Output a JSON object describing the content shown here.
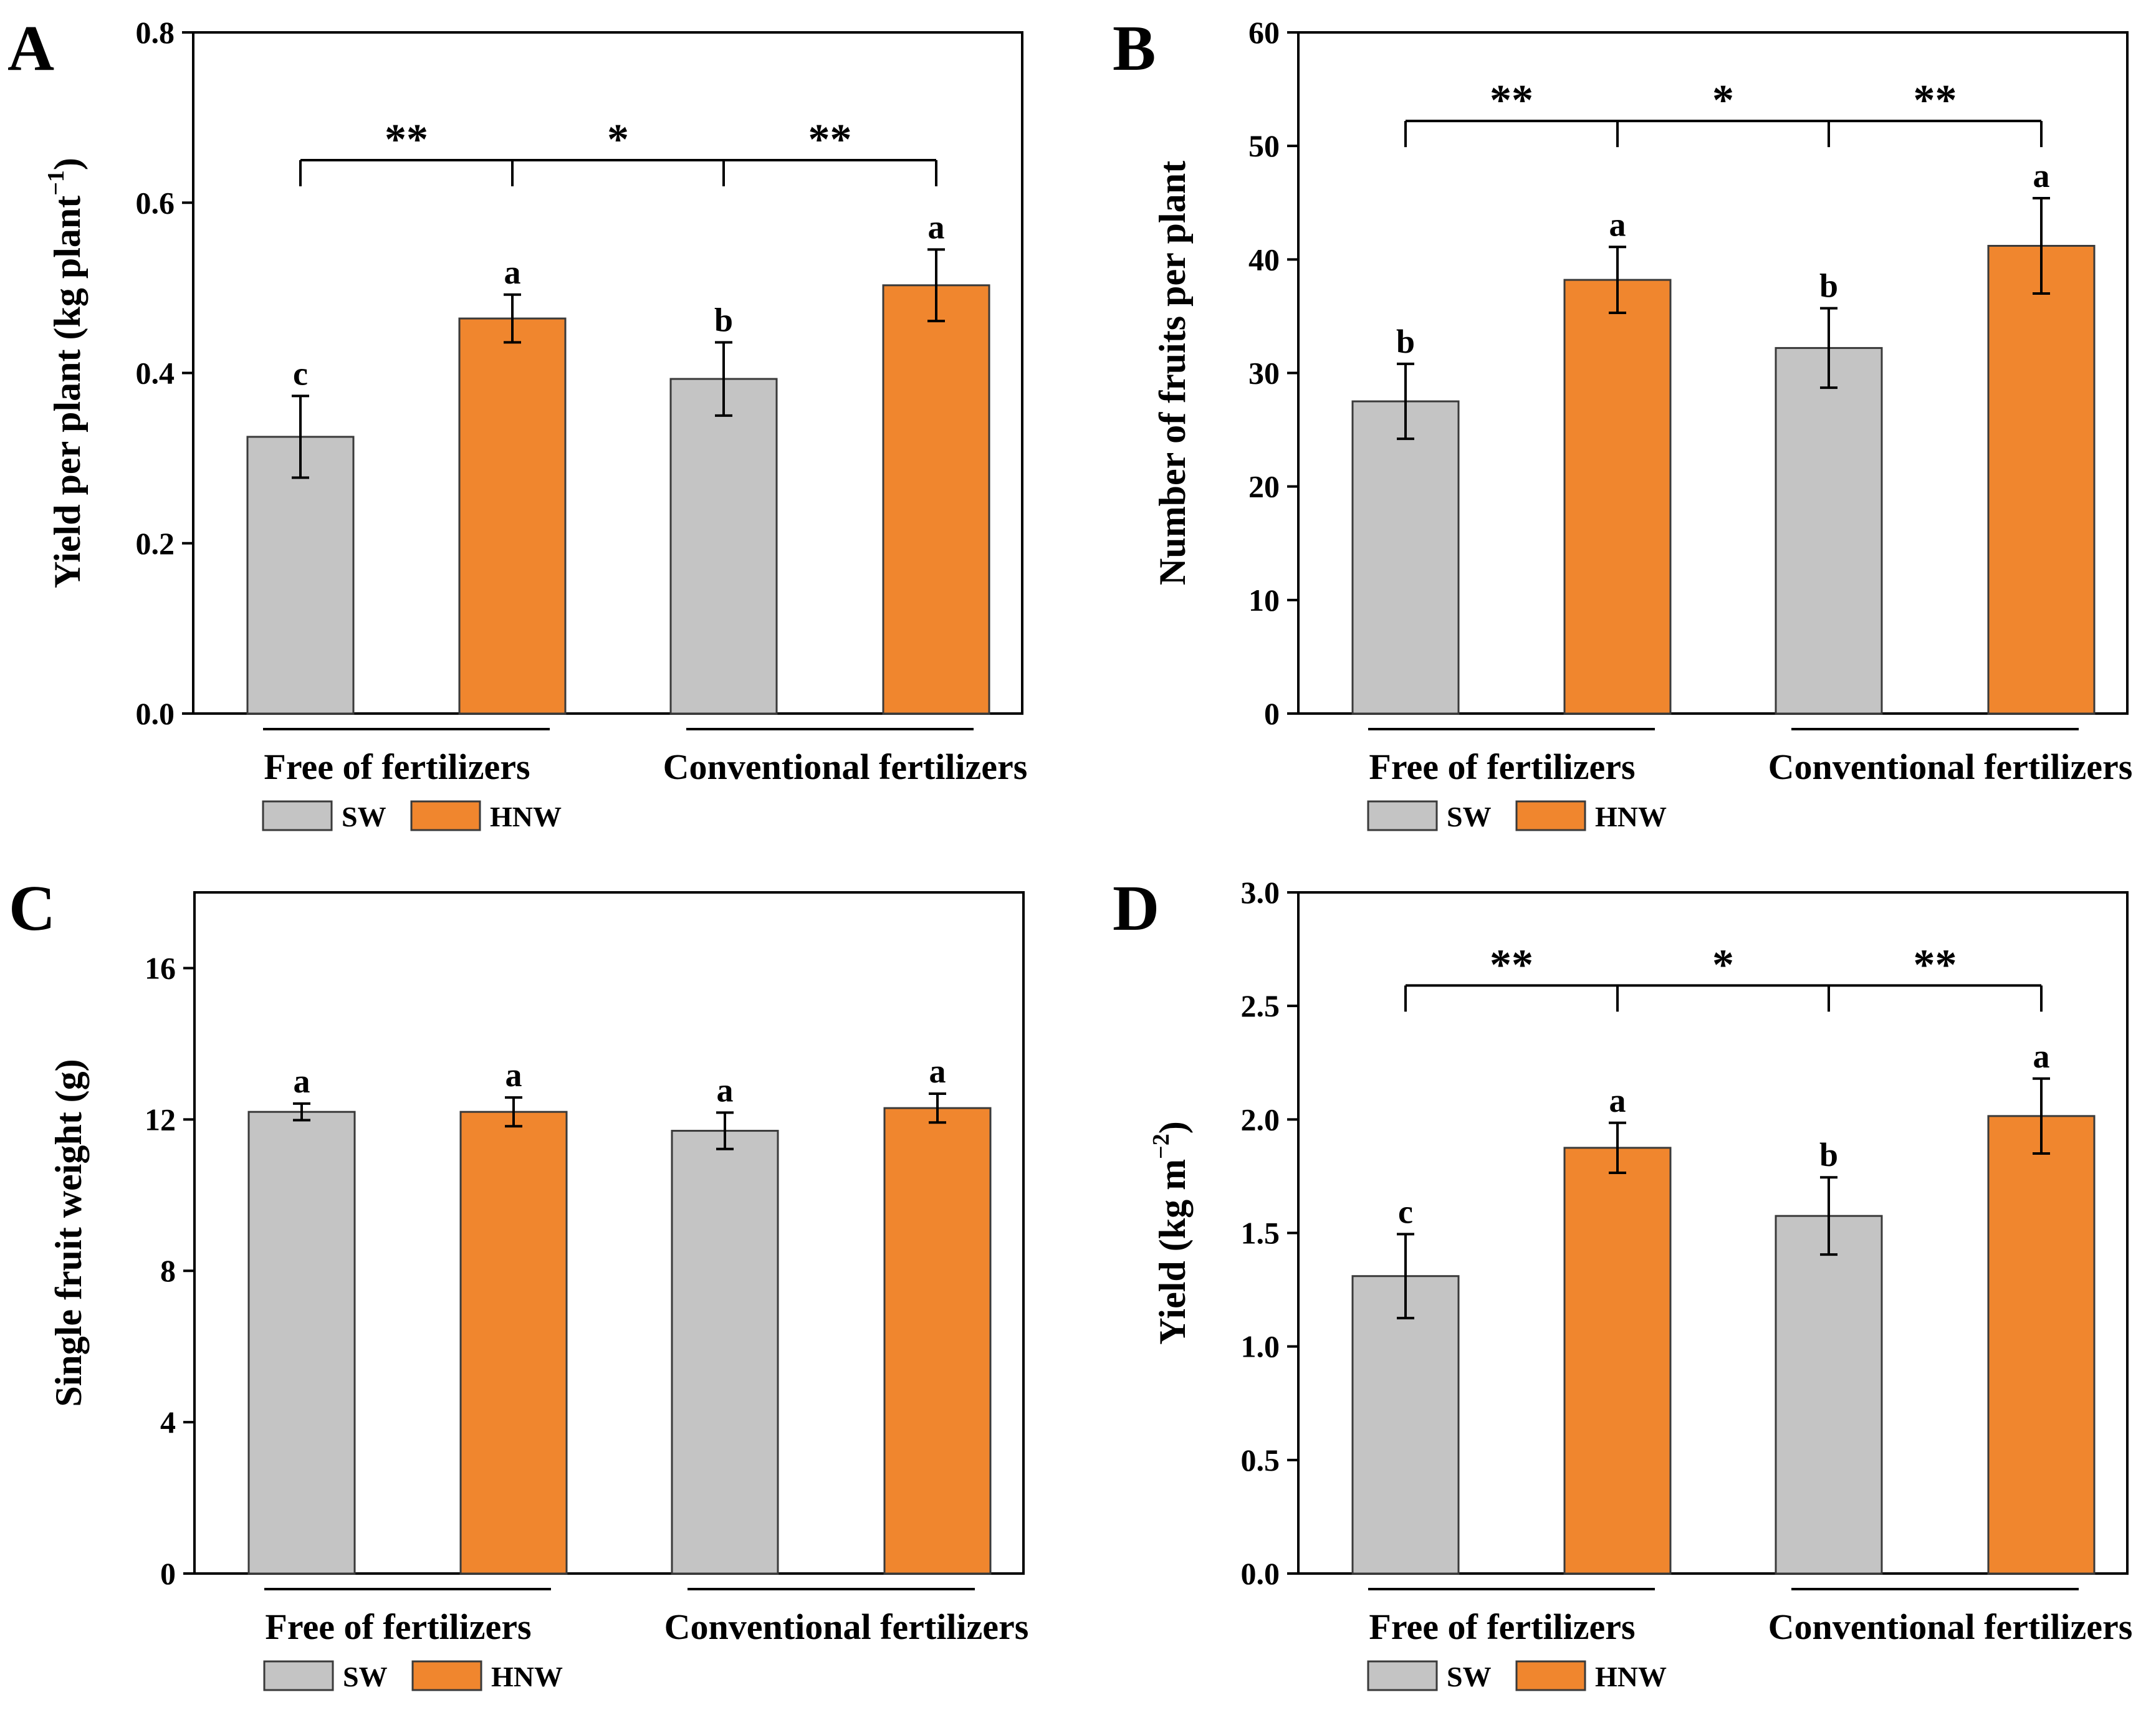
{
  "figure_colors": {
    "SW": "#c4c4c4",
    "HNW": "#f0862e",
    "bar_outline": "#3a3a3a",
    "axis": "#000000"
  },
  "legend": [
    {
      "name": "SW",
      "color": "#c4c4c4"
    },
    {
      "name": "HNW",
      "color": "#f0862e"
    }
  ],
  "chart_data": [
    {
      "panel": "A",
      "type": "bar",
      "ylabel": "Yield per plant (kg plant",
      "ylabel_sup": "−1",
      "ylabel_end": ")",
      "ylim": [
        0,
        0.8
      ],
      "yticks": [
        "0.0",
        "0.2",
        "0.4",
        "0.6",
        "0.8"
      ],
      "ytick_values": [
        0,
        0.2,
        0.4,
        0.6,
        0.8
      ],
      "groups": [
        "Free of fertilizers",
        "Conventional fertilizers"
      ],
      "categories": [
        "SW",
        "HNW",
        "SW",
        "HNW"
      ],
      "values": [
        0.325,
        0.464,
        0.393,
        0.503
      ],
      "errors": [
        0.048,
        0.028,
        0.043,
        0.042
      ],
      "letters": [
        "c",
        "a",
        "b",
        "a"
      ],
      "significance": [
        "**",
        "*",
        "**"
      ],
      "sig_level": 0.65,
      "show_legend": true
    },
    {
      "panel": "B",
      "type": "bar",
      "ylabel": "Number of fruits per plant",
      "ylabel_sup": "",
      "ylabel_end": "",
      "ylim": [
        0,
        60
      ],
      "yticks": [
        "0",
        "10",
        "20",
        "30",
        "40",
        "50",
        "60"
      ],
      "ytick_values": [
        0,
        10,
        20,
        30,
        40,
        50,
        60
      ],
      "groups": [
        "Free of fertilizers",
        "Conventional fertilizers"
      ],
      "categories": [
        "SW",
        "HNW",
        "SW",
        "HNW"
      ],
      "values": [
        27.5,
        38.2,
        32.2,
        41.2
      ],
      "errors": [
        3.3,
        2.9,
        3.5,
        4.2
      ],
      "letters": [
        "b",
        "a",
        "b",
        "a"
      ],
      "significance": [
        "**",
        "*",
        "**"
      ],
      "sig_level": 52.2,
      "show_legend": true
    },
    {
      "panel": "C",
      "type": "bar",
      "ylabel": "Single fruit weight (g)",
      "ylabel_sup": "",
      "ylabel_end": "",
      "ylim": [
        0,
        18
      ],
      "yticks": [
        "0",
        "4",
        "8",
        "12",
        "16"
      ],
      "ytick_values": [
        0,
        4,
        8,
        12,
        16
      ],
      "groups": [
        "Free of fertilizers",
        "Conventional fertilizers"
      ],
      "categories": [
        "SW",
        "HNW",
        "SW",
        "HNW"
      ],
      "values": [
        12.2,
        12.2,
        11.7,
        12.3
      ],
      "errors": [
        0.22,
        0.38,
        0.48,
        0.38
      ],
      "letters": [
        "a",
        "a",
        "a",
        "a"
      ],
      "significance": [],
      "sig_level": null,
      "show_legend": true
    },
    {
      "panel": "D",
      "type": "bar",
      "ylabel": "Yield (kg m",
      "ylabel_sup": "−2",
      "ylabel_end": ")",
      "ylim": [
        0,
        3.0
      ],
      "yticks": [
        "0.0",
        "0.5",
        "1.0",
        "1.5",
        "2.0",
        "2.5",
        "3.0"
      ],
      "ytick_values": [
        0,
        0.5,
        1.0,
        1.5,
        2.0,
        2.5,
        3.0
      ],
      "groups": [
        "Free of fertilizers",
        "Conventional fertilizers"
      ],
      "categories": [
        "SW",
        "HNW",
        "SW",
        "HNW"
      ],
      "values": [
        1.31,
        1.875,
        1.575,
        2.015
      ],
      "errors": [
        0.185,
        0.11,
        0.17,
        0.165
      ],
      "letters": [
        "c",
        "a",
        "b",
        "a"
      ],
      "significance": [
        "**",
        "*",
        "**"
      ],
      "sig_level": 2.59,
      "show_legend": true
    }
  ]
}
